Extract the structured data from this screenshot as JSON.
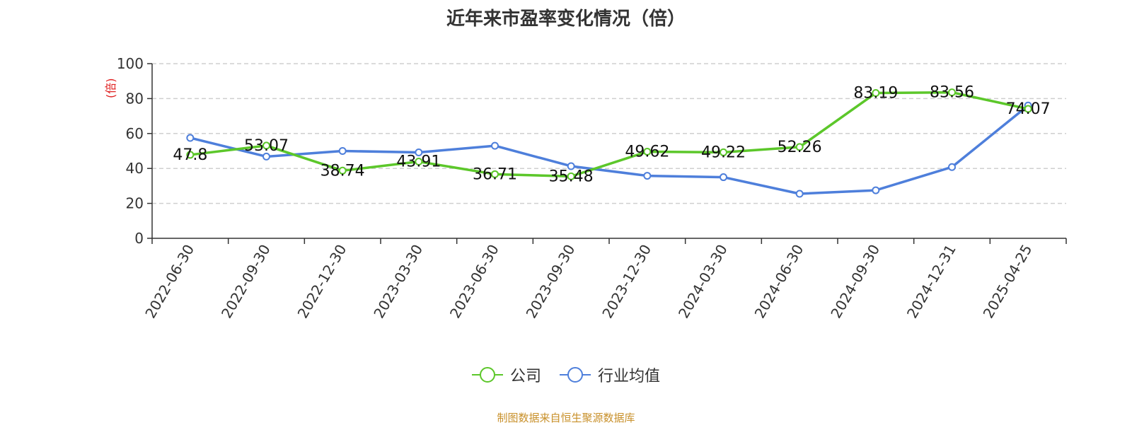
{
  "title": "近年来市盈率变化情况（倍）",
  "source": "制图数据来自恒生聚源数据库",
  "chart_data": {
    "type": "line",
    "title": "近年来市盈率变化情况（倍）",
    "ylabel": "(倍)",
    "ylim": [
      0,
      100
    ],
    "yticks": [
      0,
      20,
      40,
      60,
      80,
      100
    ],
    "grid": true,
    "legend_position": "bottom",
    "categories": [
      "2022-06-30",
      "2022-09-30",
      "2022-12-30",
      "2023-03-30",
      "2023-06-30",
      "2023-09-30",
      "2023-12-30",
      "2024-03-30",
      "2024-06-30",
      "2024-09-30",
      "2024-12-31",
      "2025-04-25"
    ],
    "series": [
      {
        "name": "公司",
        "color": "#5cc72a",
        "values": [
          47.8,
          53.07,
          38.74,
          43.91,
          36.71,
          35.48,
          49.62,
          49.22,
          52.26,
          83.19,
          83.56,
          74.07
        ],
        "labels": [
          "47.8",
          "53.07",
          "38.74",
          "43.91",
          "36.71",
          "35.48",
          "49.62",
          "49.22",
          "52.26",
          "83.19",
          "83.56",
          "74.07"
        ]
      },
      {
        "name": "行业均值",
        "color": "#4e7fdb",
        "values": [
          57.5,
          46.8,
          50.0,
          49.2,
          53.0,
          41.3,
          35.8,
          35.0,
          25.5,
          27.5,
          40.8,
          76.0
        ]
      }
    ]
  }
}
